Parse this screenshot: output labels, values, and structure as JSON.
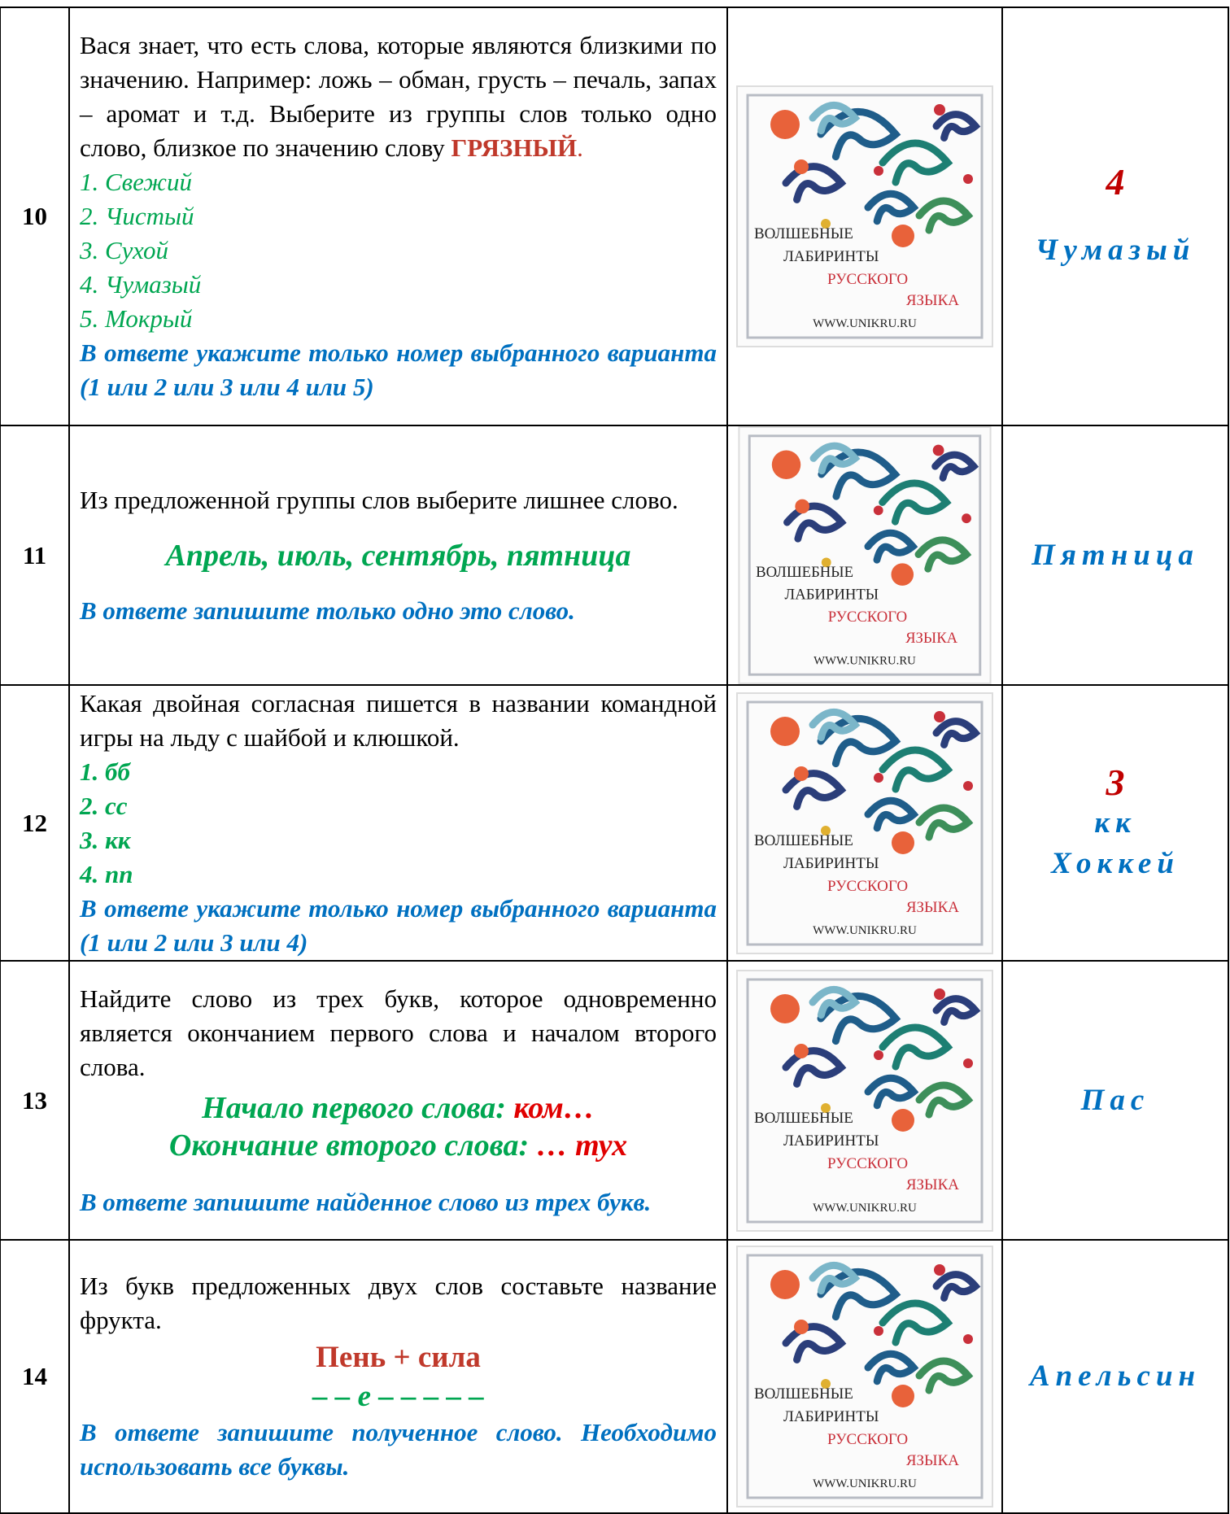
{
  "image_caption": {
    "line1": "ВОЛШЕБНЫЕ",
    "line2": "ЛАБИРИНТЫ",
    "line3": "РУССКОГО",
    "line4": "ЯЗЫКА",
    "url": "WWW.UNIKRU.RU"
  },
  "rows": [
    {
      "number": "10",
      "intro": "Вася знает, что есть слова, которые являются близкими по значению. Например: ложь – обман, грусть – печаль, запах – аромат и т.д. Выберите из группы слов только одно слово, близкое по значению слову ",
      "keyword": "ГРЯЗНЫЙ",
      "keyword_end": ".",
      "options": [
        "1. Свежий",
        "2. Чистый",
        "3. Сухой",
        "4. Чумазый",
        "5. Мокрый"
      ],
      "instruction": "В ответе укажите только номер выбранного варианта (1 или 2 или 3 или 4 или 5)",
      "answer_number": "4",
      "answer": "Чумазый"
    },
    {
      "number": "11",
      "intro": "Из предложенной группы слов выберите лишнее слово.",
      "words": "Апрель, июль, сентябрь, пятница",
      "instruction": "В ответе запишите только одно это слово.",
      "answer": "Пятница"
    },
    {
      "number": "12",
      "intro": "Какая двойная согласная пишется в названии командной игры на льду с шайбой и клюшкой.",
      "options": [
        "1. бб",
        "2. сс",
        "3. кк",
        "4. пп"
      ],
      "instruction": "В ответе укажите только номер выбранного варианта (1 или 2 или 3 или 4)",
      "answer_number": "3",
      "answer_letters": "кк",
      "answer": "Хоккей"
    },
    {
      "number": "13",
      "intro": "Найдите слово из трех букв, которое одновременно является окончанием первого слова и началом второго слова.",
      "hint1_label": "Начало первого слова: ",
      "hint1_value": "ком…",
      "hint2_label": "Окончание второго слова: ",
      "hint2_value": "… тух",
      "instruction": "В ответе запишите найденное слово из трех букв.",
      "answer": "Пас"
    },
    {
      "number": "14",
      "intro": "Из букв предложенных двух слов составьте название фрукта.",
      "words": "Пень + сила",
      "pattern": "– – е – – – – –",
      "instruction": "В ответе запишите полученное слово. Необходимо использовать все буквы.",
      "answer": "Апельсин"
    }
  ]
}
